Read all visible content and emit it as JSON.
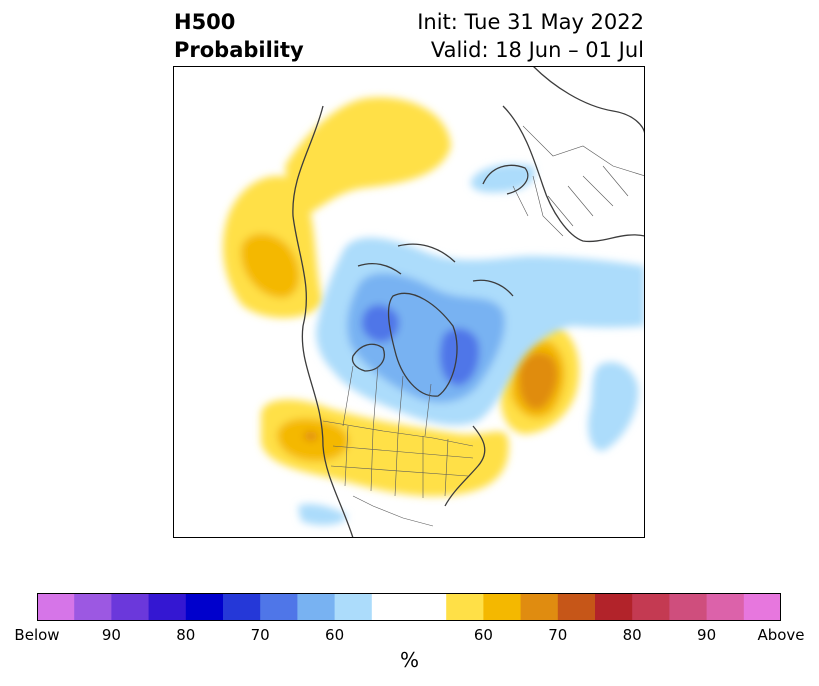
{
  "title": {
    "line1": "H500",
    "line2": "Probability",
    "init": "Init: Tue 31 May 2022",
    "valid": "Valid: 18 Jun – 01 Jul"
  },
  "colorbar": {
    "unit": "%",
    "colors": [
      "#d675e8",
      "#9c58e2",
      "#6b38db",
      "#3417d2",
      "#0000cc",
      "#2538d8",
      "#4f76e8",
      "#78b2f2",
      "#acdcfb",
      "#ffffff",
      "#ffffff",
      "#ffe047",
      "#f4b800",
      "#e08c10",
      "#c65618",
      "#b2232a",
      "#c43a52",
      "#cf4e7d",
      "#dc62aa",
      "#e777de"
    ],
    "tick_labels": [
      "Below",
      "90",
      "80",
      "70",
      "60",
      "",
      "60",
      "70",
      "80",
      "90",
      "Above"
    ]
  },
  "map": {
    "land_fill": "#ffffff",
    "border_color": "#3c3c3c"
  }
}
